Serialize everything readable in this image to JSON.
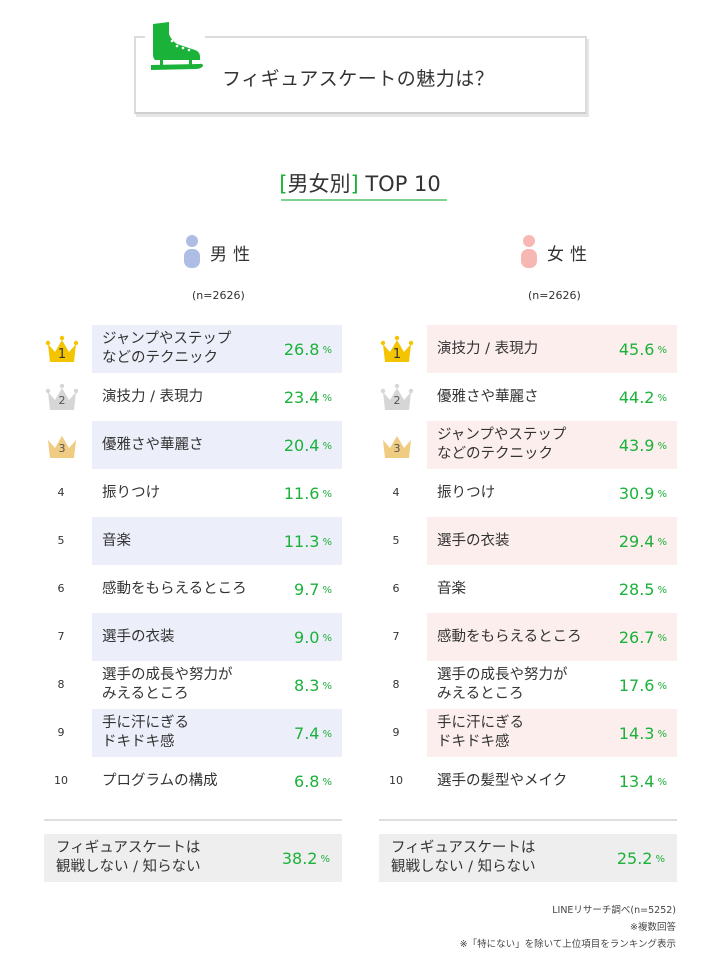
{
  "header": {
    "title": "フィギュアスケートの魅力は？",
    "icon": "skate-icon"
  },
  "subtitle": {
    "bracket_open": "[",
    "category": "男女別",
    "bracket_close": "]",
    "rest": " TOP 10"
  },
  "colors": {
    "accent_green": "#1bb23a",
    "male_shade": "#eceef9",
    "female_shade": "#fdeeee",
    "male_icon": "#aebde6",
    "female_icon": "#f7b8b3",
    "gold": "#f5c400",
    "silver": "#d6d6d6",
    "bronze": "#f0cb82",
    "other_box": "#eeeeee"
  },
  "male": {
    "label": "男性",
    "n": "(n=2626)",
    "rows": [
      {
        "rank": "1",
        "item": "ジャンプやステップ\nなどのテクニック",
        "value": "26.8",
        "unit": "%"
      },
      {
        "rank": "2",
        "item": "演技力 / 表現力",
        "value": "23.4",
        "unit": "%"
      },
      {
        "rank": "3",
        "item": "優雅さや華麗さ",
        "value": "20.4",
        "unit": "%"
      },
      {
        "rank": "4",
        "item": "振りつけ",
        "value": "11.6",
        "unit": "%"
      },
      {
        "rank": "5",
        "item": "音楽",
        "value": "11.3",
        "unit": "%"
      },
      {
        "rank": "6",
        "item": "感動をもらえるところ",
        "value": "9.7",
        "unit": "%"
      },
      {
        "rank": "7",
        "item": "選手の衣装",
        "value": "9.0",
        "unit": "%"
      },
      {
        "rank": "8",
        "item": "選手の成長や努力が\nみえるところ",
        "value": "8.3",
        "unit": "%"
      },
      {
        "rank": "9",
        "item": "手に汗にぎる\nドキドキ感",
        "value": "7.4",
        "unit": "%"
      },
      {
        "rank": "10",
        "item": "プログラムの構成",
        "value": "6.8",
        "unit": "%"
      }
    ],
    "other": {
      "item": "フィギュアスケートは\n観戦しない / 知らない",
      "value": "38.2",
      "unit": "%"
    }
  },
  "female": {
    "label": "女性",
    "n": "(n=2626)",
    "rows": [
      {
        "rank": "1",
        "item": "演技力 / 表現力",
        "value": "45.6",
        "unit": "%"
      },
      {
        "rank": "2",
        "item": "優雅さや華麗さ",
        "value": "44.2",
        "unit": "%"
      },
      {
        "rank": "3",
        "item": "ジャンプやステップ\nなどのテクニック",
        "value": "43.9",
        "unit": "%"
      },
      {
        "rank": "4",
        "item": "振りつけ",
        "value": "30.9",
        "unit": "%"
      },
      {
        "rank": "5",
        "item": "選手の衣装",
        "value": "29.4",
        "unit": "%"
      },
      {
        "rank": "6",
        "item": "音楽",
        "value": "28.5",
        "unit": "%"
      },
      {
        "rank": "7",
        "item": "感動をもらえるところ",
        "value": "26.7",
        "unit": "%"
      },
      {
        "rank": "8",
        "item": "選手の成長や努力が\nみえるところ",
        "value": "17.6",
        "unit": "%"
      },
      {
        "rank": "9",
        "item": "手に汗にぎる\nドキドキ感",
        "value": "14.3",
        "unit": "%"
      },
      {
        "rank": "10",
        "item": "選手の髪型やメイク",
        "value": "13.4",
        "unit": "%"
      }
    ],
    "other": {
      "item": "フィギュアスケートは\n観戦しない / 知らない",
      "value": "25.2",
      "unit": "%"
    }
  },
  "footer": {
    "source": "LINEリサーチ調べ(n=5252)",
    "note1": "※複数回答",
    "note2": "※「特にない」を除いて上位項目をランキング表示"
  },
  "chart_data": {
    "type": "table",
    "title": "フィギュアスケートの魅力は？",
    "subtitle": "[男女別] TOP 10",
    "unit": "%",
    "series": [
      {
        "name": "男性 (n=2626)",
        "categories": [
          "ジャンプやステップなどのテクニック",
          "演技力 / 表現力",
          "優雅さや華麗さ",
          "振りつけ",
          "音楽",
          "感動をもらえるところ",
          "選手の衣装",
          "選手の成長や努力がみえるところ",
          "手に汗にぎるドキドキ感",
          "プログラムの構成",
          "フィギュアスケートは観戦しない / 知らない"
        ],
        "values": [
          26.8,
          23.4,
          20.4,
          11.6,
          11.3,
          9.7,
          9.0,
          8.3,
          7.4,
          6.8,
          38.2
        ]
      },
      {
        "name": "女性 (n=2626)",
        "categories": [
          "演技力 / 表現力",
          "優雅さや華麗さ",
          "ジャンプやステップなどのテクニック",
          "振りつけ",
          "選手の衣装",
          "音楽",
          "感動をもらえるところ",
          "選手の成長や努力がみえるところ",
          "手に汗にぎるドキドキ感",
          "選手の髪型やメイク",
          "フィギュアスケートは観戦しない / 知らない"
        ],
        "values": [
          45.6,
          44.2,
          43.9,
          30.9,
          29.4,
          28.5,
          26.7,
          17.6,
          14.3,
          13.4,
          25.2
        ]
      }
    ],
    "notes": [
      "LINEリサーチ調べ(n=5252)",
      "※複数回答",
      "※「特にない」を除いて上位項目をランキング表示"
    ]
  }
}
